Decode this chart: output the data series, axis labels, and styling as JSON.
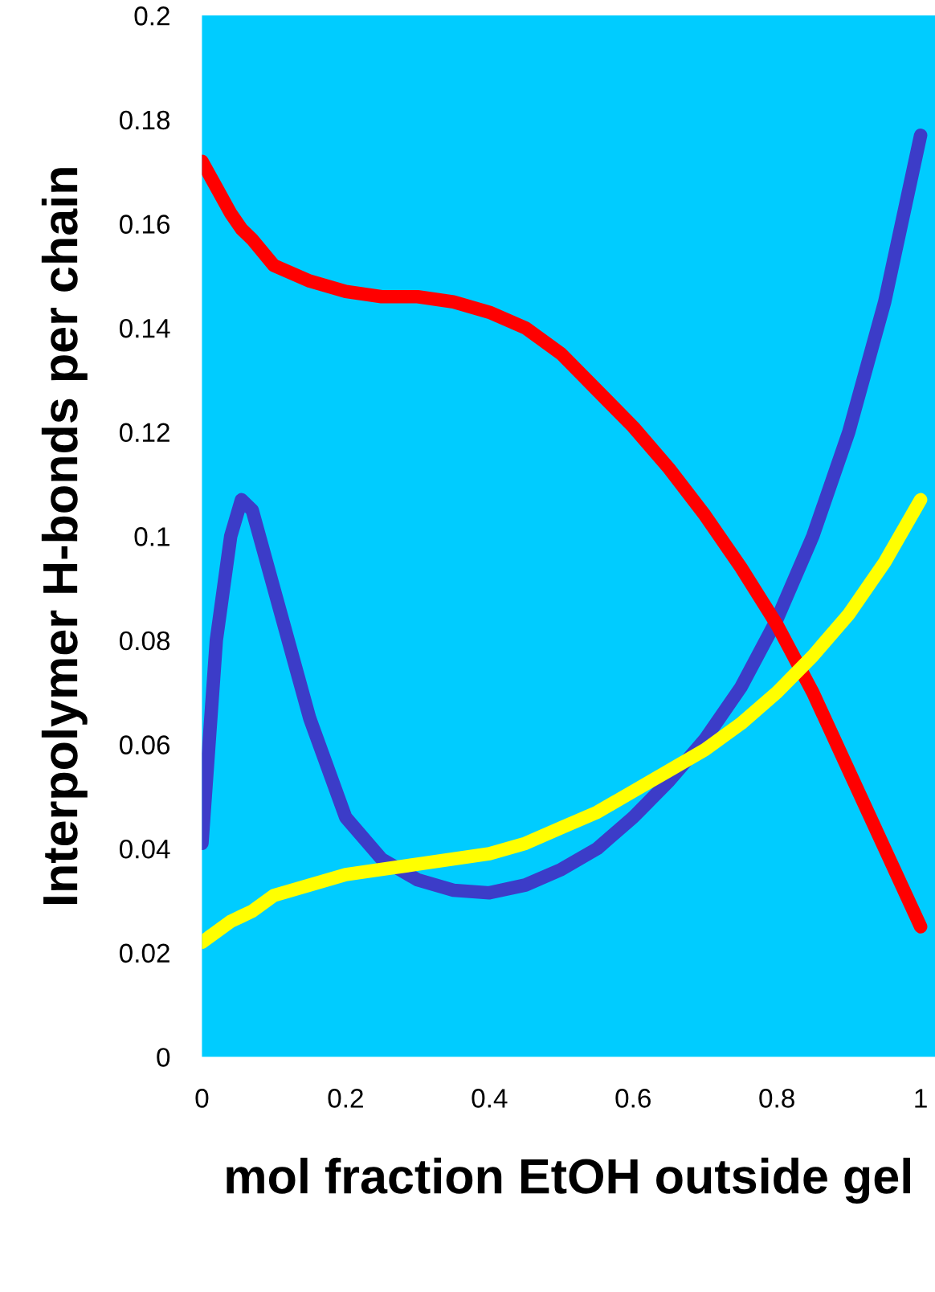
{
  "chart_data": {
    "type": "line",
    "xlabel": "mol fraction EtOH outside gel",
    "ylabel": "Interpolymer H-bonds per chain",
    "x": [
      0,
      0.02,
      0.04,
      0.055,
      0.07,
      0.1,
      0.15,
      0.2,
      0.25,
      0.3,
      0.35,
      0.4,
      0.45,
      0.5,
      0.55,
      0.6,
      0.65,
      0.7,
      0.75,
      0.8,
      0.85,
      0.9,
      0.95,
      1.0
    ],
    "series": [
      {
        "color": "#3c3cc8",
        "values": [
          0.041,
          0.08,
          0.1,
          0.107,
          0.105,
          0.09,
          0.065,
          0.046,
          0.038,
          0.034,
          0.032,
          0.0315,
          0.033,
          0.036,
          0.04,
          0.046,
          0.053,
          0.061,
          0.071,
          0.084,
          0.1,
          0.12,
          0.145,
          0.177
        ]
      },
      {
        "color": "#ff0000",
        "values": [
          0.172,
          0.167,
          0.162,
          0.159,
          0.157,
          0.152,
          0.149,
          0.147,
          0.146,
          0.146,
          0.145,
          0.143,
          0.14,
          0.135,
          0.128,
          0.121,
          0.113,
          0.104,
          0.094,
          0.083,
          0.07,
          0.055,
          0.04,
          0.025
        ]
      },
      {
        "color": "#ffff00",
        "values": [
          0.022,
          0.024,
          0.026,
          0.027,
          0.028,
          0.031,
          0.033,
          0.035,
          0.036,
          0.037,
          0.038,
          0.039,
          0.041,
          0.044,
          0.047,
          0.051,
          0.055,
          0.059,
          0.064,
          0.07,
          0.077,
          0.085,
          0.095,
          0.107
        ]
      }
    ],
    "xlim": [
      0,
      1.02
    ],
    "ylim": [
      0,
      0.2
    ],
    "xticks": [
      0,
      0.2,
      0.4,
      0.6,
      0.8,
      1
    ],
    "yticks": [
      0,
      0.02,
      0.04,
      0.06,
      0.08,
      0.1,
      0.12,
      0.14,
      0.16,
      0.18,
      0.2
    ]
  }
}
